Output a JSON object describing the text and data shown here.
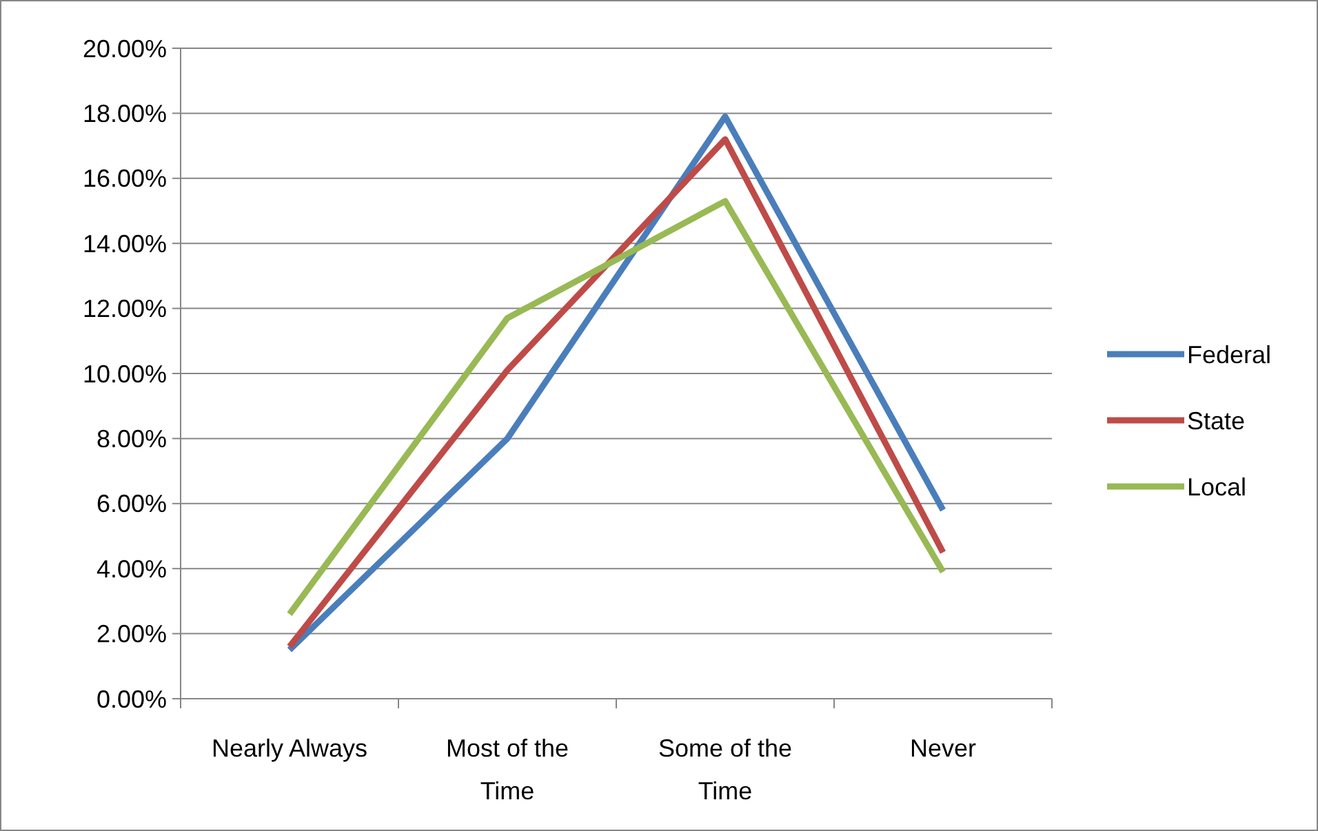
{
  "chart_data": {
    "type": "line",
    "categories": [
      "Nearly Always",
      "Most of the Time",
      "Some of the Time",
      "Never"
    ],
    "series": [
      {
        "name": "Federal",
        "color": "#4a7ebb",
        "values": [
          1.5,
          8.0,
          17.9,
          5.8
        ]
      },
      {
        "name": "State",
        "color": "#be4b48",
        "values": [
          1.6,
          10.1,
          17.2,
          4.5
        ]
      },
      {
        "name": "Local",
        "color": "#98b954",
        "values": [
          2.6,
          11.7,
          15.3,
          3.9
        ]
      }
    ],
    "ylim": [
      0,
      20
    ],
    "yticks": [
      {
        "value": 0,
        "label": "0.00%"
      },
      {
        "value": 2,
        "label": "2.00%"
      },
      {
        "value": 4,
        "label": "4.00%"
      },
      {
        "value": 6,
        "label": "6.00%"
      },
      {
        "value": 8,
        "label": "8.00%"
      },
      {
        "value": 10,
        "label": "10.00%"
      },
      {
        "value": 12,
        "label": "12.00%"
      },
      {
        "value": 14,
        "label": "14.00%"
      },
      {
        "value": 16,
        "label": "16.00%"
      },
      {
        "value": 18,
        "label": "18.00%"
      },
      {
        "value": 20,
        "label": "20.00%"
      }
    ],
    "grid": "y",
    "legend": "right",
    "marker": "none",
    "line_style": "solid"
  }
}
